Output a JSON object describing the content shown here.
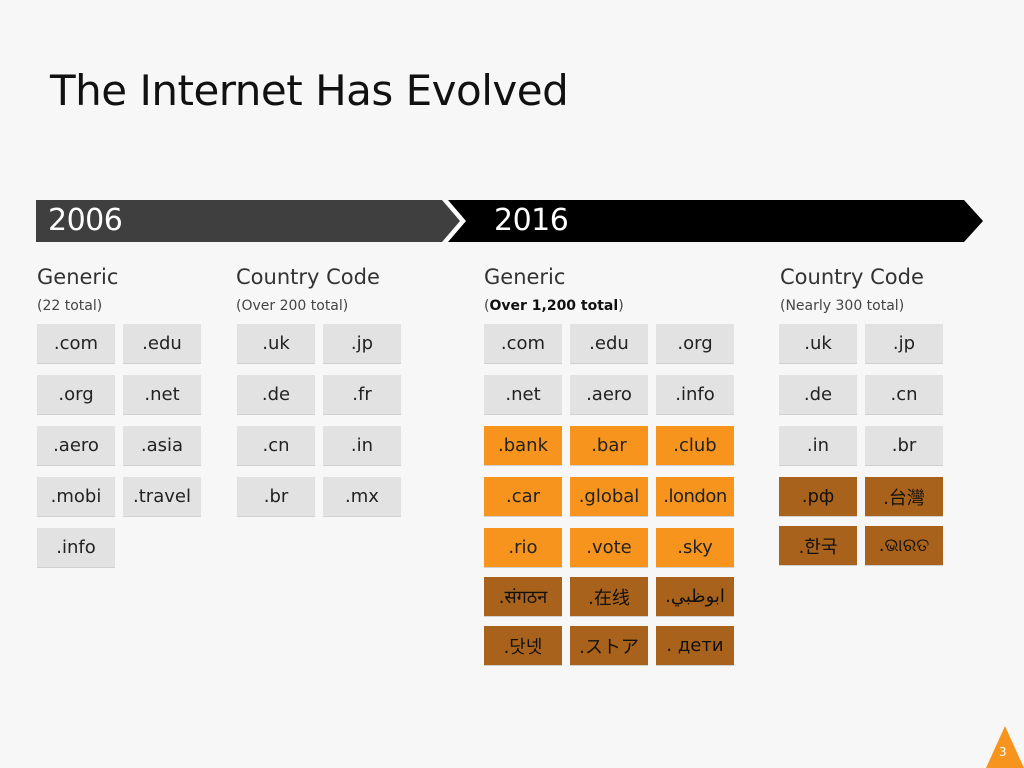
{
  "title": "The Internet Has Evolved",
  "timeline": {
    "year_left": "2006",
    "year_right": "2016"
  },
  "left_generic": {
    "heading": "Generic",
    "sub_pre": "(",
    "sub_bold": "22",
    "sub_post": " total)"
  },
  "left_country": {
    "heading": "Country Code",
    "sub": "(Over 200 total)"
  },
  "right_generic": {
    "heading": "Generic",
    "sub_pre": "(",
    "sub_bold": "Over 1,200 total",
    "sub_post": ")"
  },
  "right_country": {
    "heading": "Country Code",
    "sub": "(Nearly 300 total)"
  },
  "tiles_2006_generic": [
    ".com",
    ".edu",
    ".org",
    ".net",
    ".aero",
    ".asia",
    ".mobi",
    ".travel",
    ".info"
  ],
  "tiles_2006_country": [
    ".uk",
    ".jp",
    ".de",
    ".fr",
    ".cn",
    ".in",
    ".br",
    ".mx"
  ],
  "tiles_2016_generic": [
    ".com",
    ".edu",
    ".org",
    ".net",
    ".aero",
    ".info",
    ".bank",
    ".bar",
    ".club",
    ".car",
    ".global",
    ".london",
    ".rio",
    ".vote",
    ".sky",
    ".संगठन",
    ".在线",
    ".ابوظبي",
    ".닷넷",
    ".ストア",
    ". дети"
  ],
  "tiles_2016_country": [
    ".uk",
    ".jp",
    ".de",
    ".cn",
    ".in",
    ".br",
    ".рф",
    ".台灣",
    ".한국",
    ".ଭାରତ"
  ],
  "colors": {
    "orange": "#f7941d",
    "brown": "#a9621b",
    "gray_tile": "#e2e2e2",
    "dark_bar": "#3f3f3f",
    "black_bar": "#000000"
  },
  "page_number": "3"
}
